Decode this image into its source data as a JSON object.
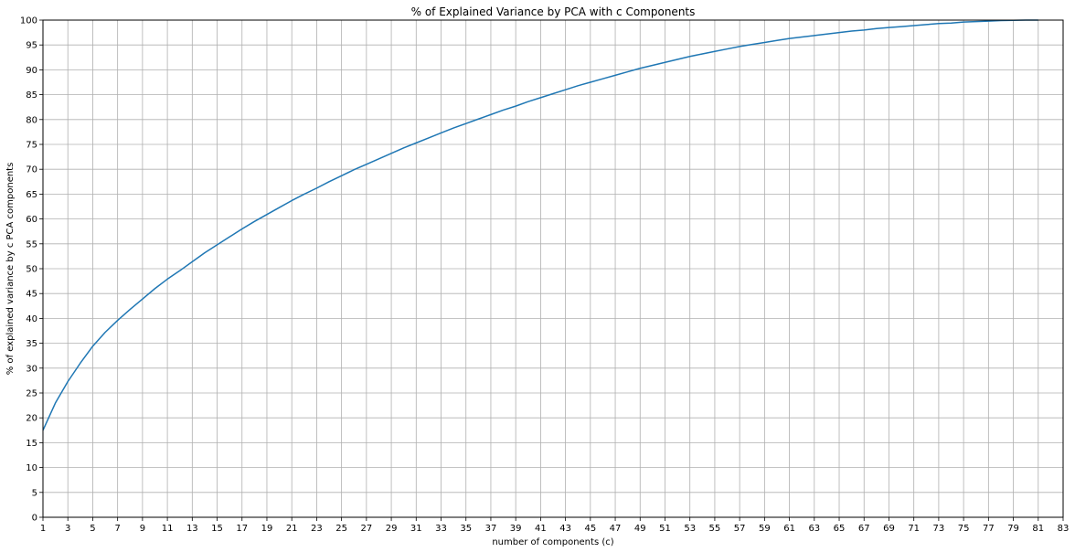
{
  "chart_data": {
    "type": "line",
    "title": "% of Explained Variance by PCA with c Components",
    "xlabel": "number of components (c)",
    "ylabel": "% of explained variance by c PCA components",
    "xlim": [
      1,
      83
    ],
    "ylim": [
      0,
      100
    ],
    "x_ticks": [
      1,
      3,
      5,
      7,
      9,
      11,
      13,
      15,
      17,
      19,
      21,
      23,
      25,
      27,
      29,
      31,
      33,
      35,
      37,
      39,
      41,
      43,
      45,
      47,
      49,
      51,
      53,
      55,
      57,
      59,
      61,
      63,
      65,
      67,
      69,
      71,
      73,
      75,
      77,
      79,
      81,
      83
    ],
    "y_ticks": [
      0,
      5,
      10,
      15,
      20,
      25,
      30,
      35,
      40,
      45,
      50,
      55,
      60,
      65,
      70,
      75,
      80,
      85,
      90,
      95,
      100
    ],
    "grid": true,
    "line_color": "#1f77b4",
    "series": [
      {
        "x": [
          1,
          2,
          3,
          4,
          5,
          6,
          7,
          8,
          9,
          10,
          11,
          12,
          13,
          14,
          15,
          16,
          17,
          18,
          19,
          20,
          21,
          22,
          23,
          24,
          25,
          26,
          27,
          28,
          29,
          30,
          31,
          32,
          33,
          34,
          35,
          36,
          37,
          38,
          39,
          40,
          41,
          42,
          43,
          44,
          45,
          46,
          47,
          48,
          49,
          50,
          51,
          52,
          53,
          54,
          55,
          56,
          57,
          58,
          59,
          60,
          61,
          62,
          63,
          64,
          65,
          66,
          67,
          68,
          69,
          70,
          71,
          72,
          73,
          74,
          75,
          76,
          77,
          78,
          79,
          80,
          81
        ],
        "values": [
          17.5,
          23.0,
          27.3,
          31.0,
          34.4,
          37.2,
          39.6,
          41.8,
          43.9,
          46.0,
          47.9,
          49.6,
          51.4,
          53.2,
          54.8,
          56.4,
          58.0,
          59.5,
          60.9,
          62.3,
          63.7,
          65.0,
          66.2,
          67.5,
          68.7,
          69.9,
          71.0,
          72.1,
          73.2,
          74.3,
          75.3,
          76.3,
          77.3,
          78.3,
          79.2,
          80.1,
          81.0,
          81.9,
          82.7,
          83.6,
          84.4,
          85.2,
          86.0,
          86.8,
          87.5,
          88.2,
          88.9,
          89.6,
          90.3,
          90.9,
          91.5,
          92.1,
          92.7,
          93.2,
          93.7,
          94.2,
          94.7,
          95.1,
          95.5,
          95.9,
          96.3,
          96.6,
          96.9,
          97.2,
          97.5,
          97.8,
          98.0,
          98.3,
          98.5,
          98.7,
          98.9,
          99.1,
          99.3,
          99.4,
          99.6,
          99.7,
          99.8,
          99.9,
          99.95,
          100.0,
          100.0
        ]
      }
    ]
  }
}
